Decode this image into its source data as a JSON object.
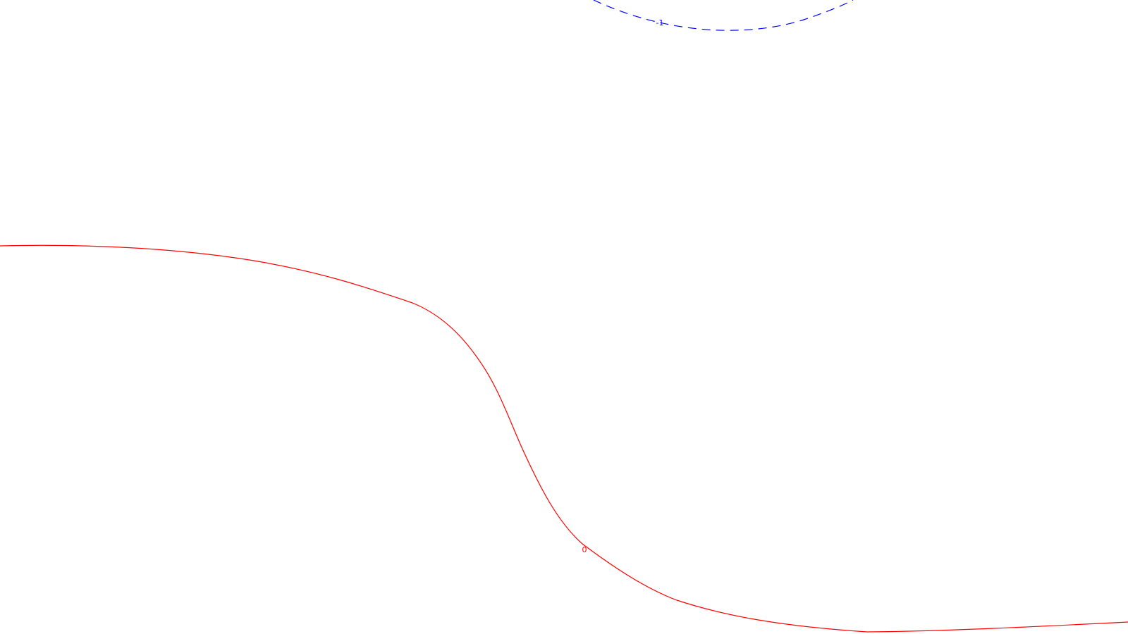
{
  "contours": [
    {
      "level_label": "-1",
      "color": "#0000ff",
      "style": "dashed"
    },
    {
      "level_label": "0",
      "color": "#ff0000",
      "style": "solid"
    }
  ]
}
